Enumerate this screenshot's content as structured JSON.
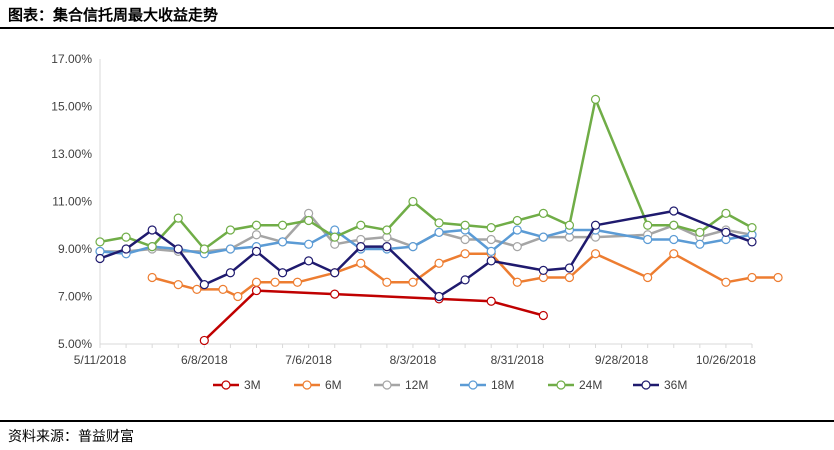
{
  "header": {
    "title": "图表：集合信托周最大收益走势"
  },
  "footer": {
    "source": "资料来源：普益财富"
  },
  "chart_data": {
    "type": "line",
    "title": "",
    "xlabel": "",
    "ylabel": "",
    "x_is_date": true,
    "x_ticks": [
      "5/11/2018",
      "6/8/2018",
      "7/6/2018",
      "8/3/2018",
      "8/31/2018",
      "9/28/2018",
      "10/26/2018"
    ],
    "xlim": [
      "2018-05-11",
      "2018-11-02"
    ],
    "y_ticks": [
      "5.00%",
      "7.00%",
      "9.00%",
      "11.00%",
      "13.00%",
      "15.00%",
      "17.00%"
    ],
    "ylim": [
      5,
      17
    ],
    "grid": false,
    "legend_position": "bottom",
    "series": [
      {
        "name": "3M",
        "color": "#C00000",
        "points": [
          [
            "2018-06-08",
            5.15
          ],
          [
            "2018-06-22",
            7.25
          ],
          [
            "2018-07-13",
            7.1
          ],
          [
            "2018-08-10",
            6.9
          ],
          [
            "2018-08-24",
            6.8
          ],
          [
            "2018-09-07",
            6.2
          ]
        ]
      },
      {
        "name": "6M",
        "color": "#ED7D31",
        "points": [
          [
            "2018-05-25",
            7.8
          ],
          [
            "2018-06-01",
            7.5
          ],
          [
            "2018-06-06",
            7.3
          ],
          [
            "2018-06-13",
            7.3
          ],
          [
            "2018-06-17",
            7.0
          ],
          [
            "2018-06-22",
            7.6
          ],
          [
            "2018-06-27",
            7.6
          ],
          [
            "2018-07-03",
            7.6
          ],
          [
            "2018-07-13",
            8.0
          ],
          [
            "2018-07-20",
            8.4
          ],
          [
            "2018-07-27",
            7.6
          ],
          [
            "2018-08-03",
            7.6
          ],
          [
            "2018-08-10",
            8.4
          ],
          [
            "2018-08-17",
            8.8
          ],
          [
            "2018-08-24",
            8.8
          ],
          [
            "2018-08-31",
            7.6
          ],
          [
            "2018-09-07",
            7.8
          ],
          [
            "2018-09-14",
            7.8
          ],
          [
            "2018-09-21",
            8.8
          ],
          [
            "2018-10-05",
            7.8
          ],
          [
            "2018-10-12",
            8.8
          ],
          [
            "2018-10-26",
            7.6
          ],
          [
            "2018-11-02",
            7.8
          ],
          [
            "2018-11-09",
            7.8
          ]
        ]
      },
      {
        "name": "12M",
        "color": "#A5A5A5",
        "points": [
          [
            "2018-05-11",
            8.9
          ],
          [
            "2018-05-18",
            8.9
          ],
          [
            "2018-05-25",
            9.0
          ],
          [
            "2018-06-01",
            8.9
          ],
          [
            "2018-06-08",
            8.9
          ],
          [
            "2018-06-15",
            9.0
          ],
          [
            "2018-06-22",
            9.6
          ],
          [
            "2018-06-29",
            9.3
          ],
          [
            "2018-07-06",
            10.5
          ],
          [
            "2018-07-13",
            9.2
          ],
          [
            "2018-07-20",
            9.4
          ],
          [
            "2018-07-27",
            9.5
          ],
          [
            "2018-08-03",
            9.1
          ],
          [
            "2018-08-10",
            9.7
          ],
          [
            "2018-08-17",
            9.4
          ],
          [
            "2018-08-24",
            9.4
          ],
          [
            "2018-08-31",
            9.1
          ],
          [
            "2018-09-07",
            9.5
          ],
          [
            "2018-09-14",
            9.5
          ],
          [
            "2018-09-21",
            9.5
          ],
          [
            "2018-10-05",
            9.6
          ],
          [
            "2018-10-12",
            10.0
          ],
          [
            "2018-10-19",
            9.5
          ],
          [
            "2018-10-26",
            9.8
          ],
          [
            "2018-11-02",
            9.6
          ]
        ]
      },
      {
        "name": "18M",
        "color": "#5B9BD5",
        "points": [
          [
            "2018-05-11",
            8.9
          ],
          [
            "2018-05-18",
            8.8
          ],
          [
            "2018-05-25",
            9.1
          ],
          [
            "2018-06-01",
            9.0
          ],
          [
            "2018-06-08",
            8.8
          ],
          [
            "2018-06-15",
            9.0
          ],
          [
            "2018-06-22",
            9.1
          ],
          [
            "2018-06-29",
            9.3
          ],
          [
            "2018-07-06",
            9.2
          ],
          [
            "2018-07-13",
            9.8
          ],
          [
            "2018-07-20",
            9.0
          ],
          [
            "2018-07-27",
            9.0
          ],
          [
            "2018-08-03",
            9.1
          ],
          [
            "2018-08-10",
            9.7
          ],
          [
            "2018-08-17",
            9.8
          ],
          [
            "2018-08-24",
            8.9
          ],
          [
            "2018-08-31",
            9.8
          ],
          [
            "2018-09-07",
            9.5
          ],
          [
            "2018-09-14",
            9.8
          ],
          [
            "2018-09-21",
            9.8
          ],
          [
            "2018-10-05",
            9.4
          ],
          [
            "2018-10-12",
            9.4
          ],
          [
            "2018-10-19",
            9.2
          ],
          [
            "2018-10-26",
            9.4
          ],
          [
            "2018-11-02",
            9.6
          ]
        ]
      },
      {
        "name": "24M",
        "color": "#70AD47",
        "points": [
          [
            "2018-05-11",
            9.3
          ],
          [
            "2018-05-18",
            9.5
          ],
          [
            "2018-05-25",
            9.1
          ],
          [
            "2018-06-01",
            10.3
          ],
          [
            "2018-06-08",
            9.0
          ],
          [
            "2018-06-15",
            9.8
          ],
          [
            "2018-06-22",
            10.0
          ],
          [
            "2018-06-29",
            10.0
          ],
          [
            "2018-07-06",
            10.2
          ],
          [
            "2018-07-13",
            9.5
          ],
          [
            "2018-07-20",
            10.0
          ],
          [
            "2018-07-27",
            9.8
          ],
          [
            "2018-08-03",
            11.0
          ],
          [
            "2018-08-10",
            10.1
          ],
          [
            "2018-08-17",
            10.0
          ],
          [
            "2018-08-24",
            9.9
          ],
          [
            "2018-08-31",
            10.2
          ],
          [
            "2018-09-07",
            10.5
          ],
          [
            "2018-09-14",
            10.0
          ],
          [
            "2018-09-21",
            15.3
          ],
          [
            "2018-10-05",
            10.0
          ],
          [
            "2018-10-12",
            10.0
          ],
          [
            "2018-10-19",
            9.7
          ],
          [
            "2018-10-26",
            10.5
          ],
          [
            "2018-11-02",
            9.9
          ]
        ]
      },
      {
        "name": "36M",
        "color": "#1F1A6E",
        "points": [
          [
            "2018-05-11",
            8.6
          ],
          [
            "2018-05-18",
            9.0
          ],
          [
            "2018-05-25",
            9.8
          ],
          [
            "2018-06-01",
            9.0
          ],
          [
            "2018-06-08",
            7.5
          ],
          [
            "2018-06-15",
            8.0
          ],
          [
            "2018-06-22",
            8.9
          ],
          [
            "2018-06-29",
            8.0
          ],
          [
            "2018-07-06",
            8.5
          ],
          [
            "2018-07-13",
            8.0
          ],
          [
            "2018-07-20",
            9.1
          ],
          [
            "2018-07-27",
            9.1
          ],
          [
            "2018-08-10",
            7.0
          ],
          [
            "2018-08-17",
            7.7
          ],
          [
            "2018-08-24",
            8.5
          ],
          [
            "2018-09-07",
            8.1
          ],
          [
            "2018-09-14",
            8.2
          ],
          [
            "2018-09-21",
            10.0
          ],
          [
            "2018-10-12",
            10.6
          ],
          [
            "2018-10-26",
            9.7
          ],
          [
            "2018-11-02",
            9.3
          ]
        ]
      }
    ]
  }
}
